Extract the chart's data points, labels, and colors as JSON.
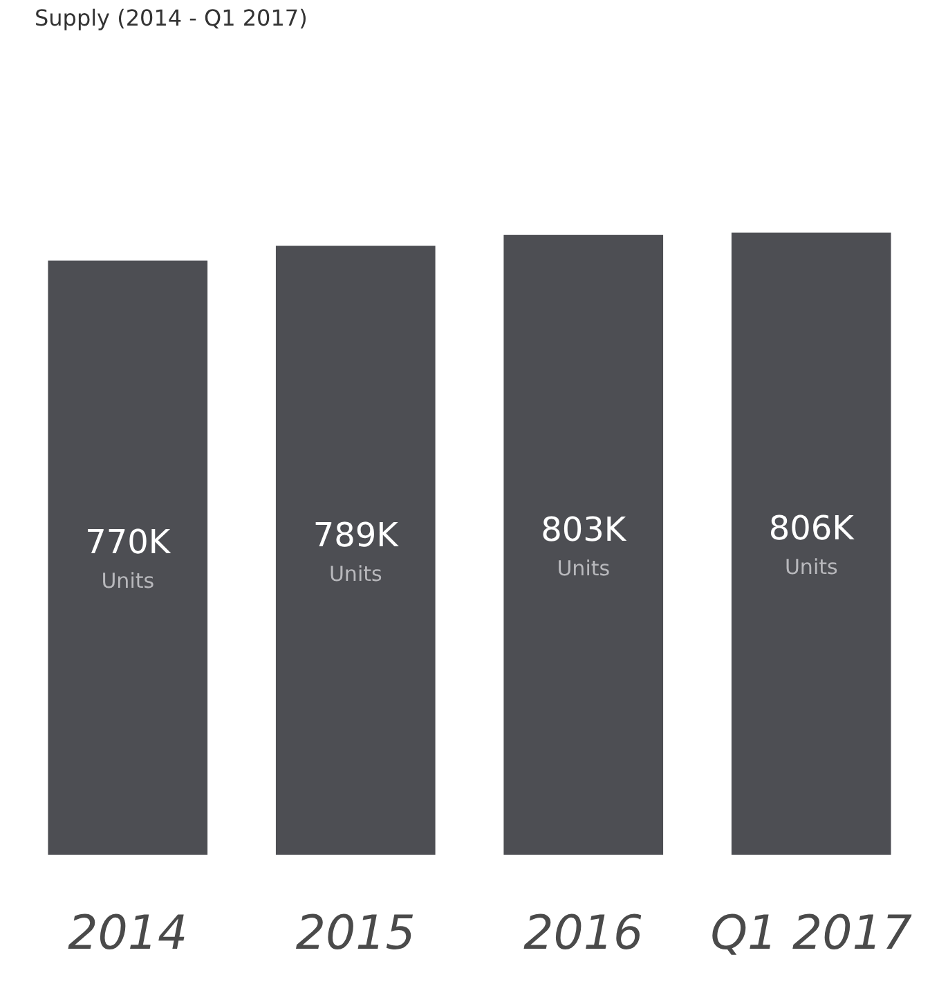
{
  "chart_data": {
    "type": "bar",
    "title": "Supply (2014 - Q1 2017)",
    "categories": [
      "2014",
      "2015",
      "2016",
      "Q1 2017"
    ],
    "values": [
      770,
      789,
      803,
      806
    ],
    "value_labels": [
      "770K Units",
      "789K Units",
      "803K Units",
      "806K Units"
    ],
    "color": "#4d4e53"
  }
}
